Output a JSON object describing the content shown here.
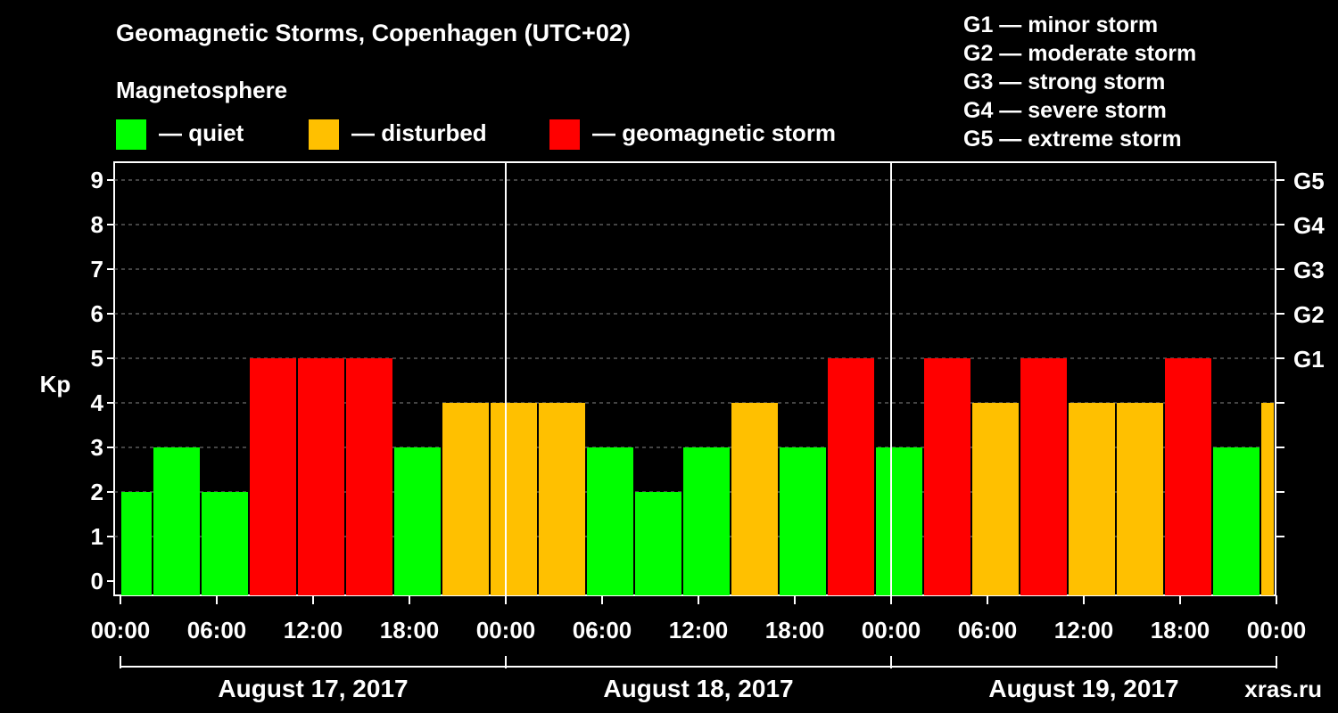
{
  "title": "Geomagnetic Storms, Copenhagen (UTC+02)",
  "subtitle": "Magnetosphere",
  "legend": [
    {
      "label": "— quiet",
      "color": "#00ff00"
    },
    {
      "label": "— disturbed",
      "color": "#ffc000"
    },
    {
      "label": "— geomagnetic storm",
      "color": "#ff0000"
    }
  ],
  "storm_scale": [
    "G1 — minor storm",
    "G2 — moderate storm",
    "G3 — strong storm",
    "G4 — severe storm",
    "G5 — extreme storm"
  ],
  "watermark": "xras.ru",
  "chart_data": {
    "type": "bar",
    "ylabel": "Kp",
    "ylim": [
      0,
      9
    ],
    "yticks": [
      0,
      1,
      2,
      3,
      4,
      5,
      6,
      7,
      8,
      9
    ],
    "right_ticks": [
      {
        "kp": 5,
        "label": "G1"
      },
      {
        "kp": 6,
        "label": "G2"
      },
      {
        "kp": 7,
        "label": "G3"
      },
      {
        "kp": 8,
        "label": "G4"
      },
      {
        "kp": 9,
        "label": "G5"
      }
    ],
    "x_tick_labels": [
      "00:00",
      "06:00",
      "12:00",
      "18:00",
      "00:00",
      "06:00",
      "12:00",
      "18:00",
      "00:00",
      "06:00",
      "12:00",
      "18:00",
      "00:00"
    ],
    "days": [
      "August 17, 2017",
      "August 18, 2017",
      "August 19, 2017"
    ],
    "grid": true,
    "colors": {
      "quiet": "#00ff00",
      "disturbed": "#ffc000",
      "storm": "#ff0000"
    },
    "bars": [
      {
        "start": "17 00:00",
        "end": "17 02:00",
        "kp": 2
      },
      {
        "start": "17 02:00",
        "end": "17 05:00",
        "kp": 3
      },
      {
        "start": "17 05:00",
        "end": "17 08:00",
        "kp": 2
      },
      {
        "start": "17 08:00",
        "end": "17 11:00",
        "kp": 5
      },
      {
        "start": "17 11:00",
        "end": "17 14:00",
        "kp": 5
      },
      {
        "start": "17 14:00",
        "end": "17 17:00",
        "kp": 5
      },
      {
        "start": "17 17:00",
        "end": "17 20:00",
        "kp": 3
      },
      {
        "start": "17 20:00",
        "end": "17 23:00",
        "kp": 4
      },
      {
        "start": "17 23:00",
        "end": "18 02:00",
        "kp": 4
      },
      {
        "start": "18 02:00",
        "end": "18 05:00",
        "kp": 4
      },
      {
        "start": "18 05:00",
        "end": "18 08:00",
        "kp": 3
      },
      {
        "start": "18 08:00",
        "end": "18 11:00",
        "kp": 2
      },
      {
        "start": "18 11:00",
        "end": "18 14:00",
        "kp": 3
      },
      {
        "start": "18 14:00",
        "end": "18 17:00",
        "kp": 4
      },
      {
        "start": "18 17:00",
        "end": "18 20:00",
        "kp": 3
      },
      {
        "start": "18 20:00",
        "end": "18 23:00",
        "kp": 5
      },
      {
        "start": "18 23:00",
        "end": "19 02:00",
        "kp": 3
      },
      {
        "start": "19 02:00",
        "end": "19 05:00",
        "kp": 5
      },
      {
        "start": "19 05:00",
        "end": "19 08:00",
        "kp": 4
      },
      {
        "start": "19 08:00",
        "end": "19 11:00",
        "kp": 5
      },
      {
        "start": "19 11:00",
        "end": "19 14:00",
        "kp": 4
      },
      {
        "start": "19 14:00",
        "end": "19 17:00",
        "kp": 4
      },
      {
        "start": "19 17:00",
        "end": "19 20:00",
        "kp": 5
      },
      {
        "start": "19 20:00",
        "end": "19 23:00",
        "kp": 3
      },
      {
        "start": "19 23:00",
        "end": "20 00:00",
        "kp": 4
      }
    ]
  }
}
